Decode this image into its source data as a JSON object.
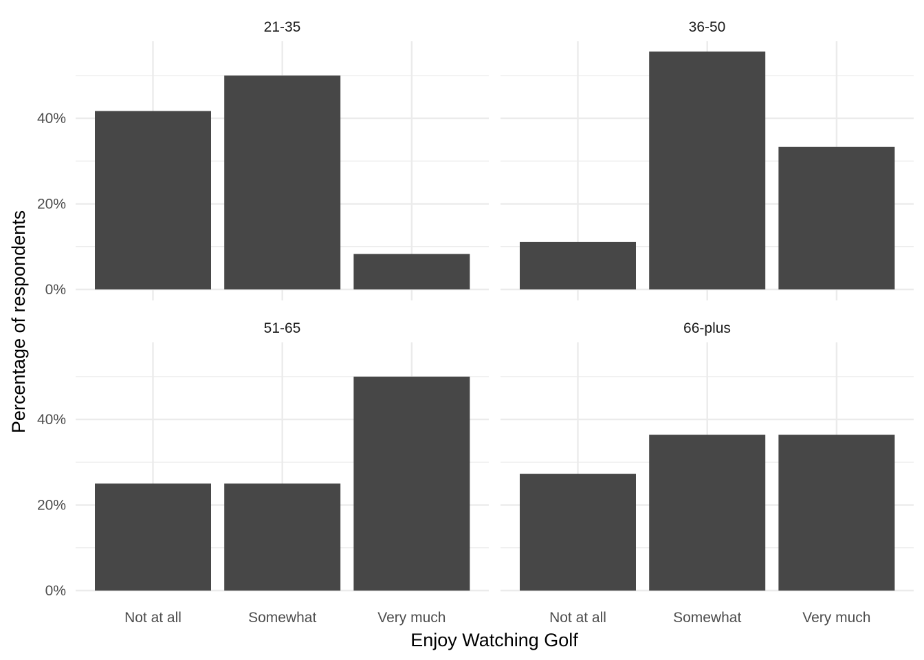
{
  "chart_data": {
    "type": "bar",
    "layout": "facet_wrap 2x2",
    "xlabel": "Enjoy Watching Golf",
    "ylabel": "Percentage of respondents",
    "categories": [
      "Not at all",
      "Somewhat",
      "Very much"
    ],
    "ylim": [
      0,
      0.58
    ],
    "yticks": [
      {
        "value": 0,
        "label": "0%"
      },
      {
        "value": 0.2,
        "label": "20%"
      },
      {
        "value": 0.4,
        "label": "40%"
      }
    ],
    "grid": true,
    "bar_color": "#474747",
    "grid_color": "#ebebeb",
    "panels": [
      {
        "title": "21-35",
        "values": [
          0.417,
          0.5,
          0.083
        ]
      },
      {
        "title": "36-50",
        "values": [
          0.111,
          0.556,
          0.333
        ]
      },
      {
        "title": "51-65",
        "values": [
          0.25,
          0.25,
          0.5
        ]
      },
      {
        "title": "66-plus",
        "values": [
          0.273,
          0.364,
          0.364
        ]
      }
    ]
  }
}
